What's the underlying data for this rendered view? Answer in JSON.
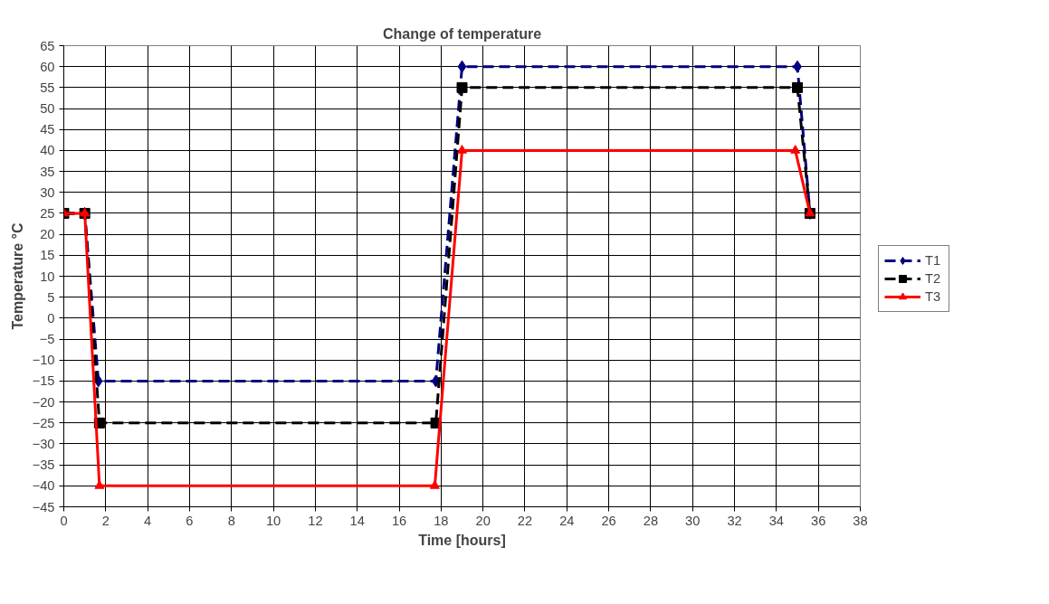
{
  "chart_data": {
    "type": "line",
    "title": "Change of temperature",
    "xlabel": "Time [hours]",
    "ylabel": "Temperature °C",
    "xlim": [
      0,
      38
    ],
    "xticks": [
      0,
      2,
      4,
      6,
      8,
      10,
      12,
      14,
      16,
      18,
      20,
      22,
      24,
      26,
      28,
      30,
      32,
      34,
      36,
      38
    ],
    "ylim": [
      -45,
      65
    ],
    "yticks": [
      -45,
      -40,
      -35,
      -30,
      -25,
      -20,
      -15,
      -10,
      -5,
      0,
      5,
      10,
      15,
      20,
      25,
      30,
      35,
      40,
      45,
      50,
      55,
      60,
      65
    ],
    "grid": true,
    "legend": "right",
    "series": [
      {
        "name": "T1",
        "color": "#000080",
        "marker": "diamond",
        "line_style": "dashed",
        "x": [
          0,
          1,
          1.65,
          17.75,
          19,
          35,
          35.6
        ],
        "values": [
          25,
          25,
          -15,
          -15,
          60,
          60,
          25
        ]
      },
      {
        "name": "T2",
        "color": "#000000",
        "marker": "square",
        "line_style": "dashed",
        "x": [
          0,
          1,
          1.7,
          17.75,
          19,
          35,
          35.6
        ],
        "values": [
          25,
          25,
          -25,
          -25,
          55,
          55,
          25
        ]
      },
      {
        "name": "T3",
        "color": "#ff0000",
        "marker": "triangle",
        "line_style": "solid",
        "x": [
          0,
          1,
          1.7,
          17.7,
          19,
          34.9,
          35.6
        ],
        "values": [
          25,
          25,
          -40,
          -40,
          40,
          40,
          25
        ]
      }
    ]
  }
}
